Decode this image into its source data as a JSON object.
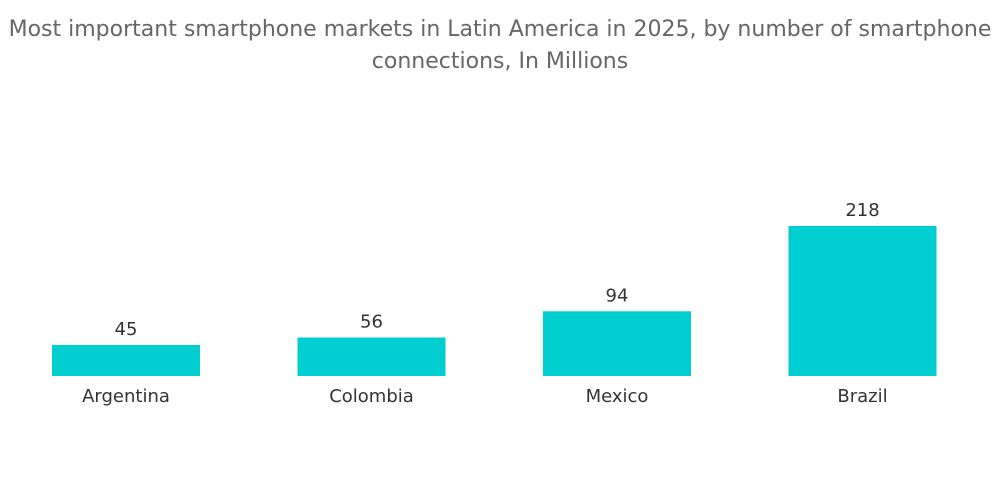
{
  "chart_data": {
    "type": "bar",
    "title_line1": "Most important smartphone markets in Latin America in 2025, by number of smartphone",
    "title_line2": "connections, In Millions",
    "categories": [
      "Argentina",
      "Colombia",
      "Mexico",
      "Brazil"
    ],
    "values": [
      45,
      56,
      94,
      218
    ],
    "value_labels": [
      "45",
      "56",
      "94",
      "218"
    ],
    "xlabel": "",
    "ylabel": "",
    "ylim": [
      0,
      218
    ],
    "grid": false,
    "legend": "none",
    "bar_color": "#00CED1"
  }
}
